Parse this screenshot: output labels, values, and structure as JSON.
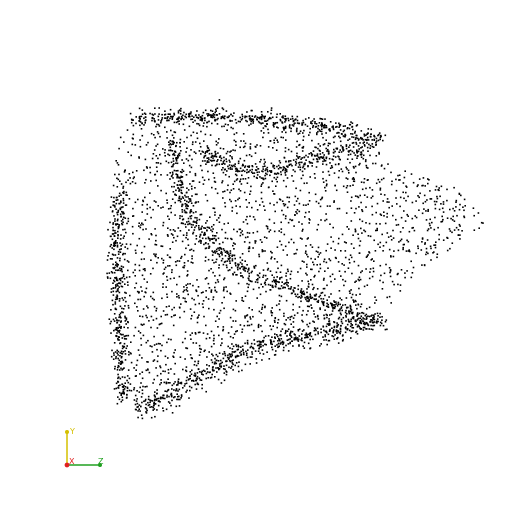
{
  "viewer": {
    "background": "#ffffff",
    "point_color": "#000000"
  },
  "orientation_axes": {
    "labels": {
      "y": "Y",
      "x": "X",
      "z": "Z"
    },
    "colors": {
      "y": "#d4c000",
      "x": "#e02020",
      "z": "#20a020"
    }
  }
}
